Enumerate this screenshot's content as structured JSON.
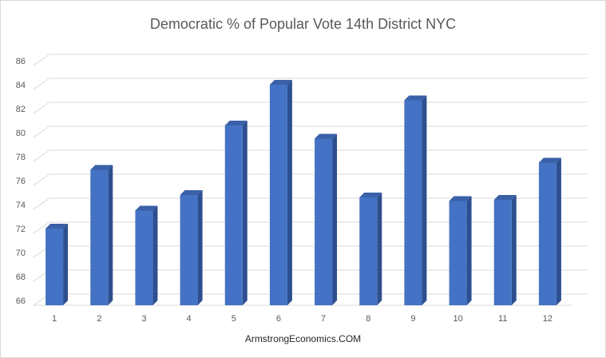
{
  "chart_data": {
    "type": "bar",
    "title": "Democratic % of Popular Vote 14th District NYC",
    "xlabel": "ArmstrongEconomics.COM",
    "ylabel": "",
    "categories": [
      "1",
      "2",
      "3",
      "4",
      "5",
      "6",
      "7",
      "8",
      "9",
      "10",
      "11",
      "12"
    ],
    "series": [
      {
        "values": [
          72.4,
          77.3,
          73.9,
          75.2,
          81.0,
          84.4,
          79.9,
          75.0,
          83.1,
          74.7,
          74.8,
          77.9
        ]
      }
    ],
    "ylim": [
      66,
      86
    ],
    "yticks": [
      66,
      68,
      70,
      72,
      74,
      76,
      78,
      80,
      82,
      84,
      86
    ],
    "grid": true,
    "legend": "none",
    "style_3d": true,
    "colors": {
      "bar_front": "#4472c4",
      "bar_side": "#2e4f8f",
      "bar_top": "#3a60a8",
      "grid": "#d9d9d9",
      "text": "#595959"
    }
  }
}
